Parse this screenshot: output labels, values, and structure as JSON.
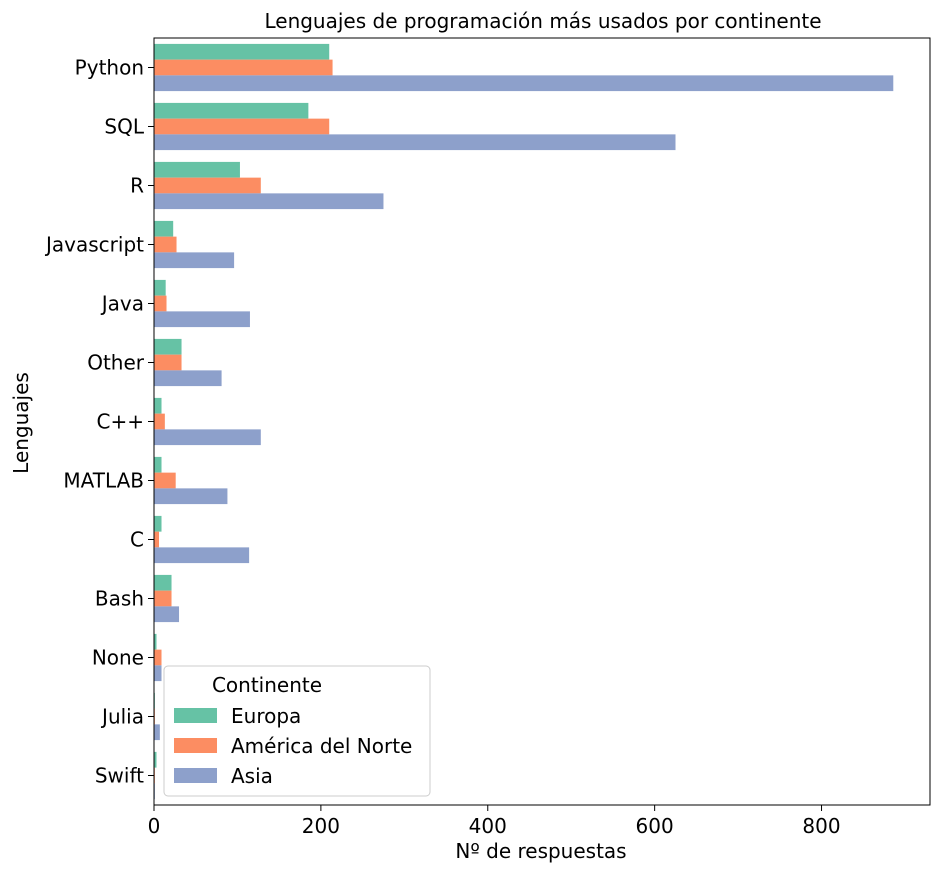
{
  "chart_data": {
    "type": "bar",
    "orientation": "horizontal",
    "title": "Lenguajes de programación más usados por continente",
    "xlabel": "Nº de respuestas",
    "ylabel": "Lenguajes",
    "xlim": [
      0,
      930
    ],
    "xticks": [
      0,
      200,
      400,
      600,
      800
    ],
    "categories": [
      "Python",
      "SQL",
      "R",
      "Javascript",
      "Java",
      "Other",
      "C++",
      "MATLAB",
      "C",
      "Bash",
      "None",
      "Julia",
      "Swift"
    ],
    "series": [
      {
        "name": "Europa",
        "color": "#66c2a5",
        "values": [
          210,
          185,
          103,
          23,
          14,
          33,
          9,
          9,
          9,
          21,
          3,
          1,
          3
        ]
      },
      {
        "name": "América del Norte",
        "color": "#fc8d62",
        "values": [
          214,
          210,
          128,
          27,
          15,
          33,
          13,
          26,
          6,
          21,
          9,
          1,
          1
        ]
      },
      {
        "name": "Asia",
        "color": "#8da0cb",
        "values": [
          886,
          625,
          275,
          96,
          115,
          81,
          128,
          88,
          114,
          30,
          9,
          7,
          1
        ]
      }
    ],
    "legend": {
      "title": "Continente",
      "placement": "lower-left"
    },
    "grid": false
  }
}
